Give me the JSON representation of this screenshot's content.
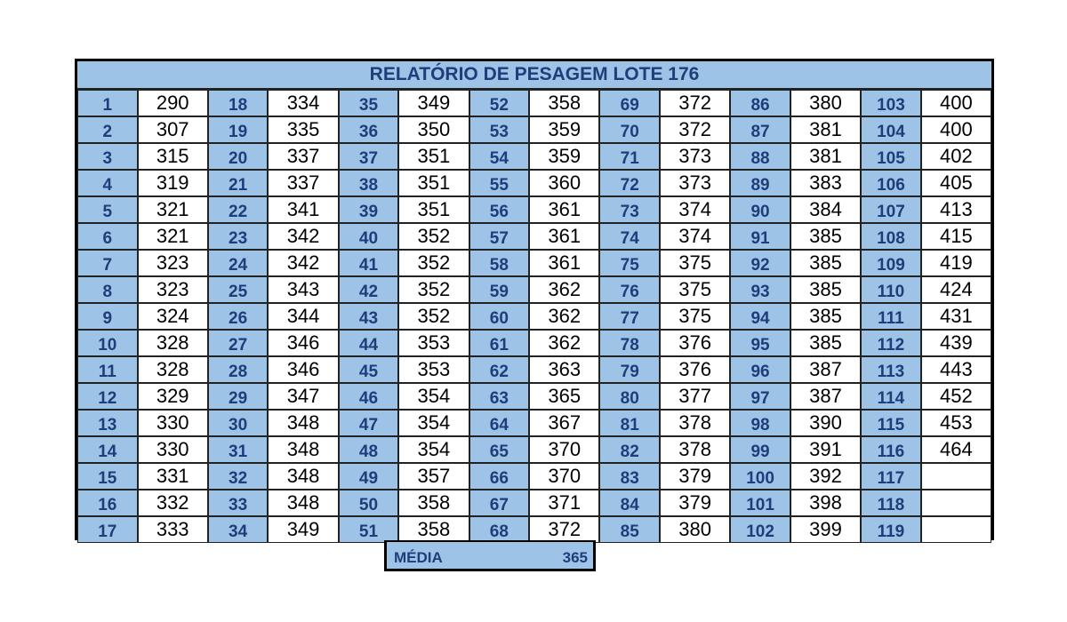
{
  "title": "RELATÓRIO DE PESAGEM LOTE 176",
  "table": {
    "rows": [
      [
        1,
        290,
        18,
        334,
        35,
        349,
        52,
        358,
        69,
        372,
        86,
        380,
        103,
        400
      ],
      [
        2,
        307,
        19,
        335,
        36,
        350,
        53,
        359,
        70,
        372,
        87,
        381,
        104,
        400
      ],
      [
        3,
        315,
        20,
        337,
        37,
        351,
        54,
        359,
        71,
        373,
        88,
        381,
        105,
        402
      ],
      [
        4,
        319,
        21,
        337,
        38,
        351,
        55,
        360,
        72,
        373,
        89,
        383,
        106,
        405
      ],
      [
        5,
        321,
        22,
        341,
        39,
        351,
        56,
        361,
        73,
        374,
        90,
        384,
        107,
        413
      ],
      [
        6,
        321,
        23,
        342,
        40,
        352,
        57,
        361,
        74,
        374,
        91,
        385,
        108,
        415
      ],
      [
        7,
        323,
        24,
        342,
        41,
        352,
        58,
        361,
        75,
        375,
        92,
        385,
        109,
        419
      ],
      [
        8,
        323,
        25,
        343,
        42,
        352,
        59,
        362,
        76,
        375,
        93,
        385,
        110,
        424
      ],
      [
        9,
        324,
        26,
        344,
        43,
        352,
        60,
        362,
        77,
        375,
        94,
        385,
        111,
        431
      ],
      [
        10,
        328,
        27,
        346,
        44,
        353,
        61,
        362,
        78,
        376,
        95,
        385,
        112,
        439
      ],
      [
        11,
        328,
        28,
        346,
        45,
        353,
        62,
        363,
        79,
        376,
        96,
        387,
        113,
        443
      ],
      [
        12,
        329,
        29,
        347,
        46,
        354,
        63,
        365,
        80,
        377,
        97,
        387,
        114,
        452
      ],
      [
        13,
        330,
        30,
        348,
        47,
        354,
        64,
        367,
        81,
        378,
        98,
        390,
        115,
        453
      ],
      [
        14,
        330,
        31,
        348,
        48,
        354,
        65,
        370,
        82,
        378,
        99,
        391,
        116,
        464
      ],
      [
        15,
        331,
        32,
        348,
        49,
        357,
        66,
        370,
        83,
        379,
        100,
        392,
        117,
        null
      ],
      [
        16,
        332,
        33,
        348,
        50,
        358,
        67,
        371,
        84,
        379,
        101,
        398,
        118,
        null
      ],
      [
        17,
        333,
        34,
        349,
        51,
        358,
        68,
        372,
        85,
        380,
        102,
        399,
        119,
        null
      ]
    ]
  },
  "footer": {
    "label": "MÉDIA",
    "value": 365
  }
}
